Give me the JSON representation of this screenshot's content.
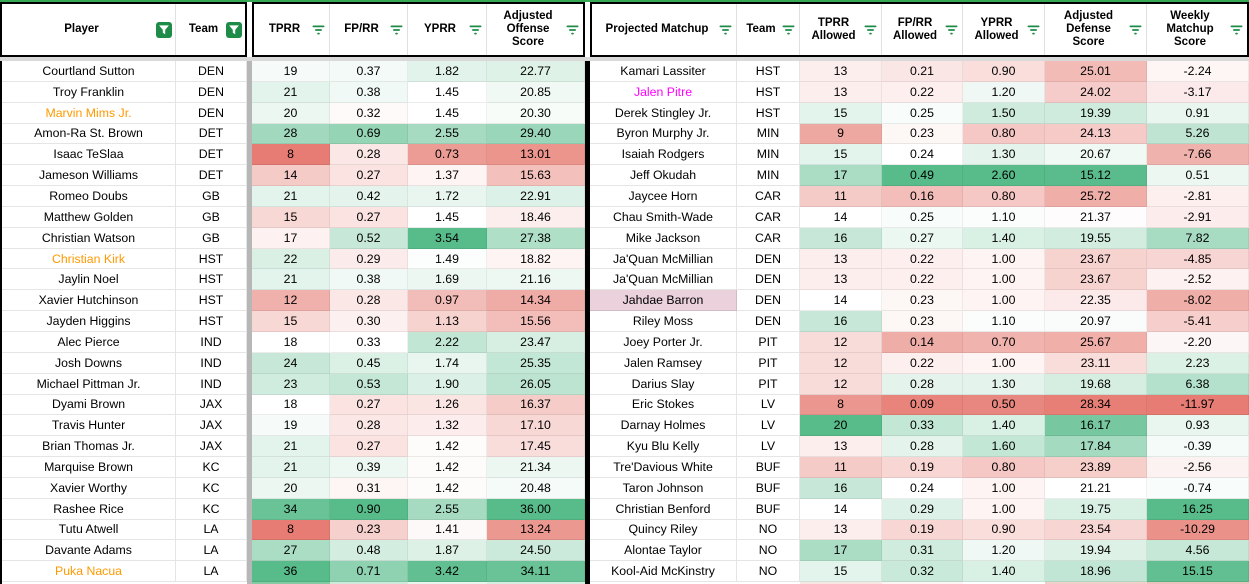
{
  "colors": {
    "accent_green": "#34a853",
    "icon_green": "#1f8b49",
    "scale_red": "#e67c73",
    "scale_green": "#57bb8a",
    "name_orange": "#ff9900",
    "name_magenta": "#ff00ff",
    "highlight_pink_bg": "#ead1dc",
    "divider_gray": "#b7b7b7",
    "freeze_band_gray": "#d9d9d9",
    "border_black": "#000000"
  },
  "header": {
    "left_block": [
      {
        "label": "Player",
        "icon": "funnel"
      },
      {
        "label": "Team",
        "icon": "funnel"
      }
    ],
    "stats_block": [
      {
        "label": "TPRR",
        "icon": "lines"
      },
      {
        "label": "FP/RR",
        "icon": "lines"
      },
      {
        "label": "YPRR",
        "icon": "lines"
      },
      {
        "label": "Adjusted Offense Score",
        "icon": "lines"
      }
    ],
    "right_block": [
      {
        "label": "Projected Matchup",
        "icon": "lines"
      },
      {
        "label": "Team",
        "icon": "lines"
      },
      {
        "label": "TPRR Allowed",
        "icon": "lines"
      },
      {
        "label": "FP/RR Allowed",
        "icon": "lines"
      },
      {
        "label": "YPRR Allowed",
        "icon": "lines"
      },
      {
        "label": "Adjusted Defense Score",
        "icon": "lines"
      },
      {
        "label": "Weekly Matchup Score",
        "icon": "lines"
      }
    ]
  },
  "left_table": {
    "rows": [
      {
        "player": "Courtland Sutton",
        "team": "DEN",
        "tprr": "19",
        "fprr": "0.37",
        "yprr": "1.82",
        "adj_offense": "22.77"
      },
      {
        "player": "Troy Franklin",
        "team": "DEN",
        "tprr": "21",
        "fprr": "0.38",
        "yprr": "1.45",
        "adj_offense": "20.85"
      },
      {
        "player": "Marvin Mims Jr.",
        "team": "DEN",
        "tprr": "20",
        "fprr": "0.32",
        "yprr": "1.45",
        "adj_offense": "20.30",
        "name_color": "#ff9900"
      },
      {
        "player": "Amon-Ra St. Brown",
        "team": "DET",
        "tprr": "28",
        "fprr": "0.69",
        "yprr": "2.55",
        "adj_offense": "29.40"
      },
      {
        "player": "Isaac TeSlaa",
        "team": "DET",
        "tprr": "8",
        "fprr": "0.28",
        "yprr": "0.73",
        "adj_offense": "13.01"
      },
      {
        "player": "Jameson Williams",
        "team": "DET",
        "tprr": "14",
        "fprr": "0.27",
        "yprr": "1.37",
        "adj_offense": "15.63"
      },
      {
        "player": "Romeo Doubs",
        "team": "GB",
        "tprr": "21",
        "fprr": "0.42",
        "yprr": "1.72",
        "adj_offense": "22.91"
      },
      {
        "player": "Matthew Golden",
        "team": "GB",
        "tprr": "15",
        "fprr": "0.27",
        "yprr": "1.45",
        "adj_offense": "18.46"
      },
      {
        "player": "Christian Watson",
        "team": "GB",
        "tprr": "17",
        "fprr": "0.52",
        "yprr": "3.54",
        "adj_offense": "27.38"
      },
      {
        "player": "Christian Kirk",
        "team": "HST",
        "tprr": "22",
        "fprr": "0.29",
        "yprr": "1.49",
        "adj_offense": "18.82",
        "name_color": "#ff9900"
      },
      {
        "player": "Jaylin Noel",
        "team": "HST",
        "tprr": "21",
        "fprr": "0.38",
        "yprr": "1.69",
        "adj_offense": "21.16"
      },
      {
        "player": "Xavier Hutchinson",
        "team": "HST",
        "tprr": "12",
        "fprr": "0.28",
        "yprr": "0.97",
        "adj_offense": "14.34"
      },
      {
        "player": "Jayden Higgins",
        "team": "HST",
        "tprr": "15",
        "fprr": "0.30",
        "yprr": "1.13",
        "adj_offense": "15.56"
      },
      {
        "player": "Alec Pierce",
        "team": "IND",
        "tprr": "18",
        "fprr": "0.33",
        "yprr": "2.22",
        "adj_offense": "23.47"
      },
      {
        "player": "Josh Downs",
        "team": "IND",
        "tprr": "24",
        "fprr": "0.45",
        "yprr": "1.74",
        "adj_offense": "25.35"
      },
      {
        "player": "Michael Pittman Jr.",
        "team": "IND",
        "tprr": "23",
        "fprr": "0.53",
        "yprr": "1.90",
        "adj_offense": "26.05"
      },
      {
        "player": "Dyami Brown",
        "team": "JAX",
        "tprr": "18",
        "fprr": "0.27",
        "yprr": "1.26",
        "adj_offense": "16.37"
      },
      {
        "player": "Travis Hunter",
        "team": "JAX",
        "tprr": "19",
        "fprr": "0.28",
        "yprr": "1.32",
        "adj_offense": "17.10"
      },
      {
        "player": "Brian Thomas Jr.",
        "team": "JAX",
        "tprr": "21",
        "fprr": "0.27",
        "yprr": "1.42",
        "adj_offense": "17.45"
      },
      {
        "player": "Marquise Brown",
        "team": "KC",
        "tprr": "21",
        "fprr": "0.39",
        "yprr": "1.42",
        "adj_offense": "21.34"
      },
      {
        "player": "Xavier Worthy",
        "team": "KC",
        "tprr": "20",
        "fprr": "0.31",
        "yprr": "1.42",
        "adj_offense": "20.48"
      },
      {
        "player": "Rashee Rice",
        "team": "KC",
        "tprr": "34",
        "fprr": "0.90",
        "yprr": "2.55",
        "adj_offense": "36.00"
      },
      {
        "player": "Tutu Atwell",
        "team": "LA",
        "tprr": "8",
        "fprr": "0.23",
        "yprr": "1.41",
        "adj_offense": "13.24"
      },
      {
        "player": "Davante Adams",
        "team": "LA",
        "tprr": "27",
        "fprr": "0.48",
        "yprr": "1.87",
        "adj_offense": "24.50"
      },
      {
        "player": "Puka Nacua",
        "team": "LA",
        "tprr": "36",
        "fprr": "0.71",
        "yprr": "3.42",
        "adj_offense": "34.11",
        "name_color": "#ff9900"
      }
    ]
  },
  "right_table": {
    "rows": [
      {
        "matchup": "Kamari Lassiter",
        "team": "HST",
        "tprr_allowed": "13",
        "fprr_allowed": "0.21",
        "yprr_allowed": "0.90",
        "adj_defense": "25.01",
        "weekly_matchup": "-2.24"
      },
      {
        "matchup": "Jalen Pitre",
        "team": "HST",
        "tprr_allowed": "13",
        "fprr_allowed": "0.22",
        "yprr_allowed": "1.20",
        "adj_defense": "24.02",
        "weekly_matchup": "-3.17",
        "name_color": "#ff00ff"
      },
      {
        "matchup": "Derek Stingley Jr.",
        "team": "HST",
        "tprr_allowed": "15",
        "fprr_allowed": "0.25",
        "yprr_allowed": "1.50",
        "adj_defense": "19.39",
        "weekly_matchup": "0.91"
      },
      {
        "matchup": "Byron Murphy Jr.",
        "team": "MIN",
        "tprr_allowed": "9",
        "fprr_allowed": "0.23",
        "yprr_allowed": "0.80",
        "adj_defense": "24.13",
        "weekly_matchup": "5.26"
      },
      {
        "matchup": "Isaiah Rodgers",
        "team": "MIN",
        "tprr_allowed": "15",
        "fprr_allowed": "0.24",
        "yprr_allowed": "1.30",
        "adj_defense": "20.67",
        "weekly_matchup": "-7.66"
      },
      {
        "matchup": "Jeff Okudah",
        "team": "MIN",
        "tprr_allowed": "17",
        "fprr_allowed": "0.49",
        "yprr_allowed": "2.60",
        "adj_defense": "15.12",
        "weekly_matchup": "0.51"
      },
      {
        "matchup": "Jaycee Horn",
        "team": "CAR",
        "tprr_allowed": "11",
        "fprr_allowed": "0.16",
        "yprr_allowed": "0.80",
        "adj_defense": "25.72",
        "weekly_matchup": "-2.81"
      },
      {
        "matchup": "Chau Smith-Wade",
        "team": "CAR",
        "tprr_allowed": "14",
        "fprr_allowed": "0.25",
        "yprr_allowed": "1.10",
        "adj_defense": "21.37",
        "weekly_matchup": "-2.91"
      },
      {
        "matchup": "Mike Jackson",
        "team": "CAR",
        "tprr_allowed": "16",
        "fprr_allowed": "0.27",
        "yprr_allowed": "1.40",
        "adj_defense": "19.55",
        "weekly_matchup": "7.82"
      },
      {
        "matchup": "Ja'Quan McMillian",
        "team": "DEN",
        "tprr_allowed": "13",
        "fprr_allowed": "0.22",
        "yprr_allowed": "1.00",
        "adj_defense": "23.67",
        "weekly_matchup": "-4.85"
      },
      {
        "matchup": "Ja'Quan McMillian",
        "team": "DEN",
        "tprr_allowed": "13",
        "fprr_allowed": "0.22",
        "yprr_allowed": "1.00",
        "adj_defense": "23.67",
        "weekly_matchup": "-2.52"
      },
      {
        "matchup": "Jahdae Barron",
        "team": "DEN",
        "tprr_allowed": "14",
        "fprr_allowed": "0.23",
        "yprr_allowed": "1.00",
        "adj_defense": "22.35",
        "weekly_matchup": "-8.02",
        "name_bg": "#ead1dc"
      },
      {
        "matchup": "Riley Moss",
        "team": "DEN",
        "tprr_allowed": "16",
        "fprr_allowed": "0.23",
        "yprr_allowed": "1.10",
        "adj_defense": "20.97",
        "weekly_matchup": "-5.41"
      },
      {
        "matchup": "Joey Porter Jr.",
        "team": "PIT",
        "tprr_allowed": "12",
        "fprr_allowed": "0.14",
        "yprr_allowed": "0.70",
        "adj_defense": "25.67",
        "weekly_matchup": "-2.20"
      },
      {
        "matchup": "Jalen Ramsey",
        "team": "PIT",
        "tprr_allowed": "12",
        "fprr_allowed": "0.22",
        "yprr_allowed": "1.00",
        "adj_defense": "23.11",
        "weekly_matchup": "2.23"
      },
      {
        "matchup": "Darius Slay",
        "team": "PIT",
        "tprr_allowed": "12",
        "fprr_allowed": "0.28",
        "yprr_allowed": "1.30",
        "adj_defense": "19.68",
        "weekly_matchup": "6.38"
      },
      {
        "matchup": "Eric Stokes",
        "team": "LV",
        "tprr_allowed": "8",
        "fprr_allowed": "0.09",
        "yprr_allowed": "0.50",
        "adj_defense": "28.34",
        "weekly_matchup": "-11.97"
      },
      {
        "matchup": "Darnay Holmes",
        "team": "LV",
        "tprr_allowed": "20",
        "fprr_allowed": "0.33",
        "yprr_allowed": "1.40",
        "adj_defense": "16.17",
        "weekly_matchup": "0.93"
      },
      {
        "matchup": "Kyu Blu Kelly",
        "team": "LV",
        "tprr_allowed": "13",
        "fprr_allowed": "0.28",
        "yprr_allowed": "1.60",
        "adj_defense": "17.84",
        "weekly_matchup": "-0.39"
      },
      {
        "matchup": "Tre'Davious White",
        "team": "BUF",
        "tprr_allowed": "11",
        "fprr_allowed": "0.19",
        "yprr_allowed": "0.80",
        "adj_defense": "23.89",
        "weekly_matchup": "-2.56"
      },
      {
        "matchup": "Taron Johnson",
        "team": "BUF",
        "tprr_allowed": "16",
        "fprr_allowed": "0.24",
        "yprr_allowed": "1.00",
        "adj_defense": "21.21",
        "weekly_matchup": "-0.74"
      },
      {
        "matchup": "Christian Benford",
        "team": "BUF",
        "tprr_allowed": "14",
        "fprr_allowed": "0.29",
        "yprr_allowed": "1.00",
        "adj_defense": "19.75",
        "weekly_matchup": "16.25"
      },
      {
        "matchup": "Quincy Riley",
        "team": "NO",
        "tprr_allowed": "13",
        "fprr_allowed": "0.19",
        "yprr_allowed": "0.90",
        "adj_defense": "23.54",
        "weekly_matchup": "-10.29"
      },
      {
        "matchup": "Alontae Taylor",
        "team": "NO",
        "tprr_allowed": "17",
        "fprr_allowed": "0.31",
        "yprr_allowed": "1.20",
        "adj_defense": "19.94",
        "weekly_matchup": "4.56"
      },
      {
        "matchup": "Kool-Aid McKinstry",
        "team": "NO",
        "tprr_allowed": "15",
        "fprr_allowed": "0.32",
        "yprr_allowed": "1.40",
        "adj_defense": "18.96",
        "weekly_matchup": "15.15"
      }
    ]
  }
}
